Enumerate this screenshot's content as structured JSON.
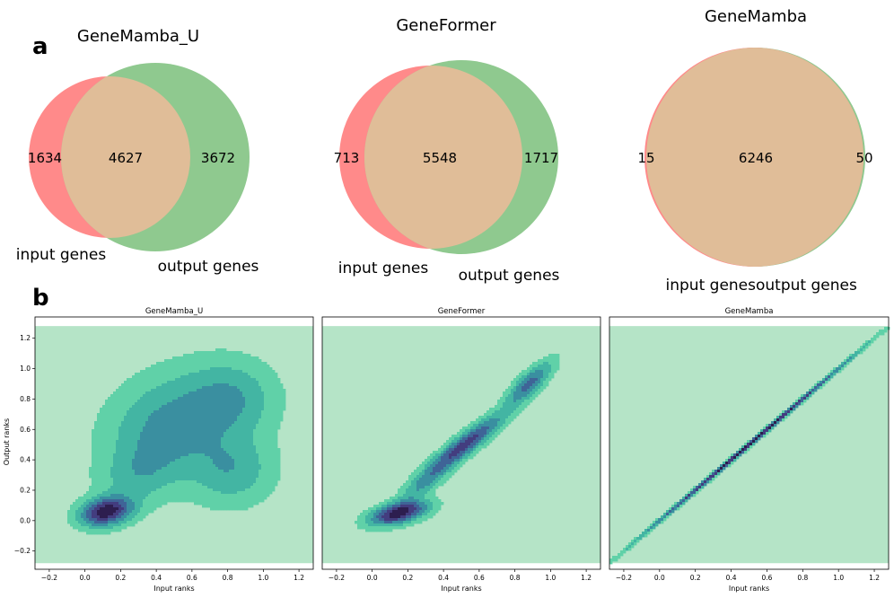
{
  "chart_data": {
    "type": "figure",
    "panel_a": {
      "label": "a",
      "type": "venn",
      "venns": [
        {
          "title": "GeneMamba_U",
          "left_label": "input genes",
          "right_label": "output genes",
          "left_only": 1634,
          "both": 4627,
          "right_only": 3672
        },
        {
          "title": "GeneFormer",
          "left_label": "input genes",
          "right_label": "output genes",
          "left_only": 713,
          "both": 5548,
          "right_only": 1717
        },
        {
          "title": "GeneMamba",
          "left_label": "input genes",
          "right_label": "output genes",
          "left_only": 15,
          "both": 6246,
          "right_only": 50
        }
      ],
      "colors": {
        "left": "#ff8a8a",
        "right": "#8fc98f",
        "overlap": "#e0bd98"
      }
    },
    "panel_b": {
      "label": "b",
      "type": "density",
      "xlabel": "Input ranks",
      "ylabel": "Output ranks",
      "xlim": [
        -0.28,
        1.28
      ],
      "ylim": [
        -0.32,
        1.34
      ],
      "xticks": [
        -0.2,
        0.0,
        0.2,
        0.4,
        0.6,
        0.8,
        1.0,
        1.2
      ],
      "xtick_labels": [
        "−0.2",
        "0.0",
        "0.2",
        "0.4",
        "0.6",
        "0.8",
        "1.0",
        "1.2"
      ],
      "yticks": [
        -0.2,
        0.0,
        0.2,
        0.4,
        0.6,
        0.8,
        1.0,
        1.2
      ],
      "ytick_labels": [
        "−0.2",
        "0.0",
        "0.2",
        "0.4",
        "0.6",
        "0.8",
        "1.0",
        "1.2"
      ],
      "background_color": "#b5e4c7",
      "level_colors": [
        "#60d1a8",
        "#43b5a3",
        "#3a8fa0",
        "#3f6497",
        "#433d7f",
        "#2d1e4f"
      ],
      "panels": [
        {
          "title": "GeneMamba_U",
          "blobs": [
            {
              "x": 0.12,
              "y": 0.06,
              "sx": 0.09,
              "sy": 0.06,
              "rho": 0.25,
              "w": 1.0
            },
            {
              "x": 0.48,
              "y": 0.62,
              "sx": 0.22,
              "sy": 0.22,
              "rho": 0.2,
              "w": 0.38
            },
            {
              "x": 0.82,
              "y": 0.8,
              "sx": 0.16,
              "sy": 0.16,
              "rho": 0.0,
              "w": 0.28
            },
            {
              "x": 0.82,
              "y": 0.34,
              "sx": 0.15,
              "sy": 0.15,
              "rho": 0.0,
              "w": 0.28
            },
            {
              "x": 0.3,
              "y": 0.3,
              "sx": 0.14,
              "sy": 0.14,
              "rho": 0.3,
              "w": 0.2
            }
          ]
        },
        {
          "title": "GeneFormer",
          "blobs": [
            {
              "x": 0.15,
              "y": 0.05,
              "sx": 0.1,
              "sy": 0.05,
              "rho": 0.5,
              "w": 1.0
            },
            {
              "x": 0.52,
              "y": 0.5,
              "sx": 0.14,
              "sy": 0.13,
              "rho": 0.92,
              "w": 0.75
            },
            {
              "x": 0.88,
              "y": 0.9,
              "sx": 0.08,
              "sy": 0.09,
              "rho": 0.8,
              "w": 0.55
            },
            {
              "x": 0.3,
              "y": 0.25,
              "sx": 0.1,
              "sy": 0.1,
              "rho": 0.85,
              "w": 0.3
            }
          ]
        },
        {
          "title": "GeneMamba",
          "blobs": [
            {
              "x": 0.5,
              "y": 0.5,
              "sx": 0.38,
              "sy": 0.38,
              "rho": 0.9995,
              "w": 1.0
            }
          ]
        }
      ]
    }
  }
}
